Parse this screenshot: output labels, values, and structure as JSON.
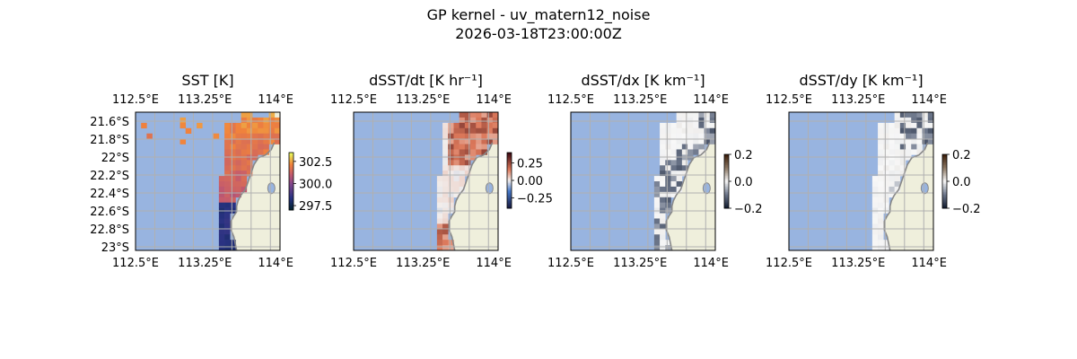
{
  "figure": {
    "title": "GP kernel - uv_matern12_noise",
    "subtitle": "2026-03-18T23:00:00Z"
  },
  "colors": {
    "ocean_mask": "#98b4e0",
    "land": "#efefdc",
    "coastline": "#888888",
    "grid": "#b0b0b0"
  },
  "chart_data": [
    {
      "type": "heatmap",
      "title": "SST [K]",
      "x_ticks": [
        "112.5°E",
        "113.25°E",
        "114°E"
      ],
      "y_ticks": [
        "21.6°S",
        "21.8°S",
        "22°S",
        "22.2°S",
        "22.4°S",
        "22.6°S",
        "22.8°S",
        "23°S"
      ],
      "xlim": [
        112.5,
        114.05
      ],
      "ylim": [
        -23.02,
        -21.5
      ],
      "grid": true,
      "colormap": "thermal",
      "colorbar": {
        "range": [
          297.0,
          303.5
        ],
        "ticks": [
          302.5,
          300.0,
          297.5
        ]
      },
      "field": "sst"
    },
    {
      "type": "heatmap",
      "title": "dSST/dt [K hr⁻¹]",
      "x_ticks": [
        "112.5°E",
        "113.25°E",
        "114°E"
      ],
      "xlim": [
        112.5,
        114.05
      ],
      "ylim": [
        -23.02,
        -21.5
      ],
      "grid": true,
      "colormap": "balance",
      "colorbar": {
        "range": [
          -0.4,
          0.4
        ],
        "ticks": [
          0.25,
          0.0,
          -0.25
        ]
      },
      "field": "dt"
    },
    {
      "type": "heatmap",
      "title": "dSST/dx [K km⁻¹]",
      "x_ticks": [
        "112.5°E",
        "113.25°E",
        "114°E"
      ],
      "xlim": [
        112.5,
        114.05
      ],
      "ylim": [
        -23.02,
        -21.5
      ],
      "grid": true,
      "colormap": "grey-diverging",
      "colorbar": {
        "range": [
          -0.2,
          0.2
        ],
        "ticks": [
          0.2,
          0.0,
          -0.2
        ]
      },
      "field": "dx"
    },
    {
      "type": "heatmap",
      "title": "dSST/dy [K km⁻¹]",
      "x_ticks": [
        "112.5°E",
        "113.25°E",
        "114°E"
      ],
      "xlim": [
        112.5,
        114.05
      ],
      "ylim": [
        -23.02,
        -21.5
      ],
      "grid": true,
      "colormap": "grey-diverging",
      "colorbar": {
        "range": [
          -0.2,
          0.2
        ],
        "ticks": [
          0.2,
          0.0,
          -0.2
        ]
      },
      "field": "dy"
    }
  ]
}
